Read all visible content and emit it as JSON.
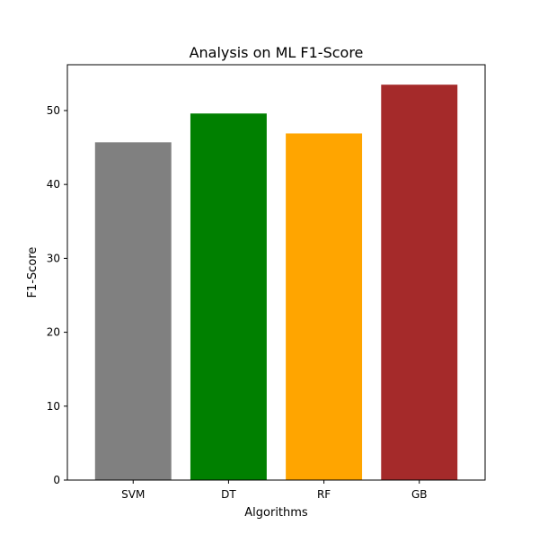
{
  "chart_data": {
    "type": "bar",
    "title": "Analysis on ML F1-Score",
    "xlabel": "Algorithms",
    "ylabel": "F1-Score",
    "categories": [
      "SVM",
      "DT",
      "RF",
      "GB"
    ],
    "values": [
      45.7,
      49.6,
      46.9,
      53.5
    ],
    "colors": [
      "#808080",
      "#008000",
      "#ffa500",
      "#a52a2a"
    ],
    "ylim": [
      0,
      56.2
    ],
    "yticks": [
      0,
      10,
      20,
      30,
      40,
      50
    ],
    "grid": false,
    "legend": "none"
  }
}
